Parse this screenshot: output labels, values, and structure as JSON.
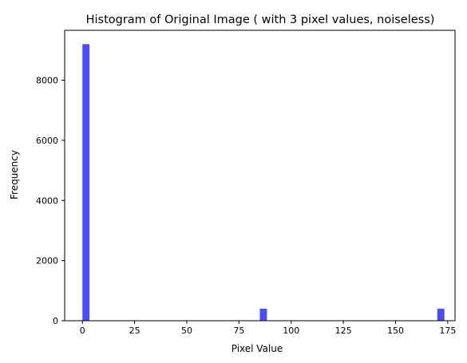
{
  "chart_data": {
    "type": "bar",
    "title": "Histogram of Original Image ( with 3 pixel values, noiseless)",
    "xlabel": "Pixel Value",
    "ylabel": "Frequency",
    "xlim": [
      -8.5,
      178.5
    ],
    "ylim": [
      0,
      9660
    ],
    "x_ticks": [
      0,
      25,
      50,
      75,
      100,
      125,
      150,
      175
    ],
    "x_tick_labels": [
      "0",
      "25",
      "50",
      "75",
      "100",
      "125",
      "150",
      "175"
    ],
    "y_ticks": [
      0,
      2000,
      4000,
      6000,
      8000
    ],
    "y_tick_labels": [
      "0",
      "2000",
      "4000",
      "6000",
      "8000"
    ],
    "bin_width": 3.4,
    "bars": [
      {
        "x": 0,
        "value": 9200
      },
      {
        "x": 85,
        "value": 400
      },
      {
        "x": 170,
        "value": 400
      }
    ],
    "bar_color": "#4b4bff",
    "grid": false,
    "legend": null
  }
}
